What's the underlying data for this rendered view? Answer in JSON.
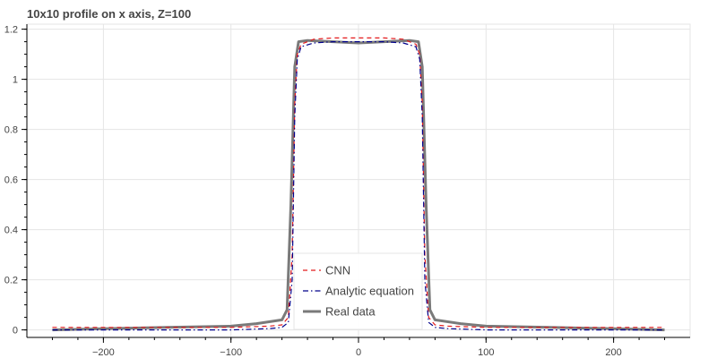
{
  "chart_data": {
    "type": "line",
    "title": "10x10 profile on x axis, Z=100",
    "xlabel": "",
    "ylabel": "",
    "xlim": [
      -260,
      260
    ],
    "ylim": [
      -0.03,
      1.22
    ],
    "grid": true,
    "legend_position": "bottom-center",
    "x_ticks": [
      -200,
      -100,
      0,
      100,
      200
    ],
    "x_tick_labels": [
      "−200",
      "−100",
      "0",
      "100",
      "200"
    ],
    "y_ticks": [
      0,
      0.2,
      0.4,
      0.6,
      0.8,
      1,
      1.2
    ],
    "y_tick_labels": [
      "0",
      "0.2",
      "0.4",
      "0.6",
      "0.8",
      "1",
      "1.2"
    ],
    "series": [
      {
        "name": "CNN",
        "color": "#e31a1c",
        "style": "dashed",
        "points": [
          [
            -240,
            0.01
          ],
          [
            -200,
            0.01
          ],
          [
            -150,
            0.01
          ],
          [
            -100,
            0.01
          ],
          [
            -70,
            0.015
          ],
          [
            -60,
            0.02
          ],
          [
            -55,
            0.05
          ],
          [
            -52,
            0.3
          ],
          [
            -50,
            0.9
          ],
          [
            -48,
            1.1
          ],
          [
            -45,
            1.14
          ],
          [
            -35,
            1.16
          ],
          [
            -20,
            1.165
          ],
          [
            0,
            1.165
          ],
          [
            20,
            1.165
          ],
          [
            35,
            1.16
          ],
          [
            45,
            1.14
          ],
          [
            48,
            1.1
          ],
          [
            50,
            0.9
          ],
          [
            52,
            0.3
          ],
          [
            55,
            0.05
          ],
          [
            60,
            0.02
          ],
          [
            70,
            0.015
          ],
          [
            100,
            0.01
          ],
          [
            150,
            0.01
          ],
          [
            200,
            0.01
          ],
          [
            240,
            0.01
          ]
        ]
      },
      {
        "name": "Analytic equation",
        "color": "#00008b",
        "style": "dashdot",
        "points": [
          [
            -240,
            0.0
          ],
          [
            -200,
            0.0
          ],
          [
            -150,
            0.0
          ],
          [
            -100,
            0.0
          ],
          [
            -70,
            0.005
          ],
          [
            -60,
            0.01
          ],
          [
            -55,
            0.03
          ],
          [
            -52,
            0.2
          ],
          [
            -50,
            0.85
          ],
          [
            -48,
            1.08
          ],
          [
            -45,
            1.13
          ],
          [
            -35,
            1.145
          ],
          [
            -20,
            1.15
          ],
          [
            0,
            1.15
          ],
          [
            20,
            1.15
          ],
          [
            35,
            1.145
          ],
          [
            45,
            1.13
          ],
          [
            48,
            1.08
          ],
          [
            50,
            0.85
          ],
          [
            52,
            0.2
          ],
          [
            55,
            0.03
          ],
          [
            60,
            0.01
          ],
          [
            70,
            0.005
          ],
          [
            100,
            0.0
          ],
          [
            150,
            0.0
          ],
          [
            200,
            0.0
          ],
          [
            240,
            0.0
          ]
        ]
      },
      {
        "name": "Real data",
        "color": "#7a7a7a",
        "style": "solid",
        "points": [
          [
            -240,
            0.0
          ],
          [
            -200,
            0.005
          ],
          [
            -150,
            0.01
          ],
          [
            -100,
            0.015
          ],
          [
            -80,
            0.025
          ],
          [
            -60,
            0.04
          ],
          [
            -56,
            0.08
          ],
          [
            -53,
            0.5
          ],
          [
            -50,
            1.05
          ],
          [
            -47,
            1.15
          ],
          [
            -40,
            1.155
          ],
          [
            -20,
            1.15
          ],
          [
            0,
            1.145
          ],
          [
            20,
            1.15
          ],
          [
            40,
            1.155
          ],
          [
            47,
            1.15
          ],
          [
            50,
            1.05
          ],
          [
            53,
            0.5
          ],
          [
            56,
            0.08
          ],
          [
            60,
            0.04
          ],
          [
            80,
            0.025
          ],
          [
            100,
            0.015
          ],
          [
            150,
            0.01
          ],
          [
            200,
            0.005
          ],
          [
            240,
            0.0
          ]
        ]
      }
    ]
  }
}
